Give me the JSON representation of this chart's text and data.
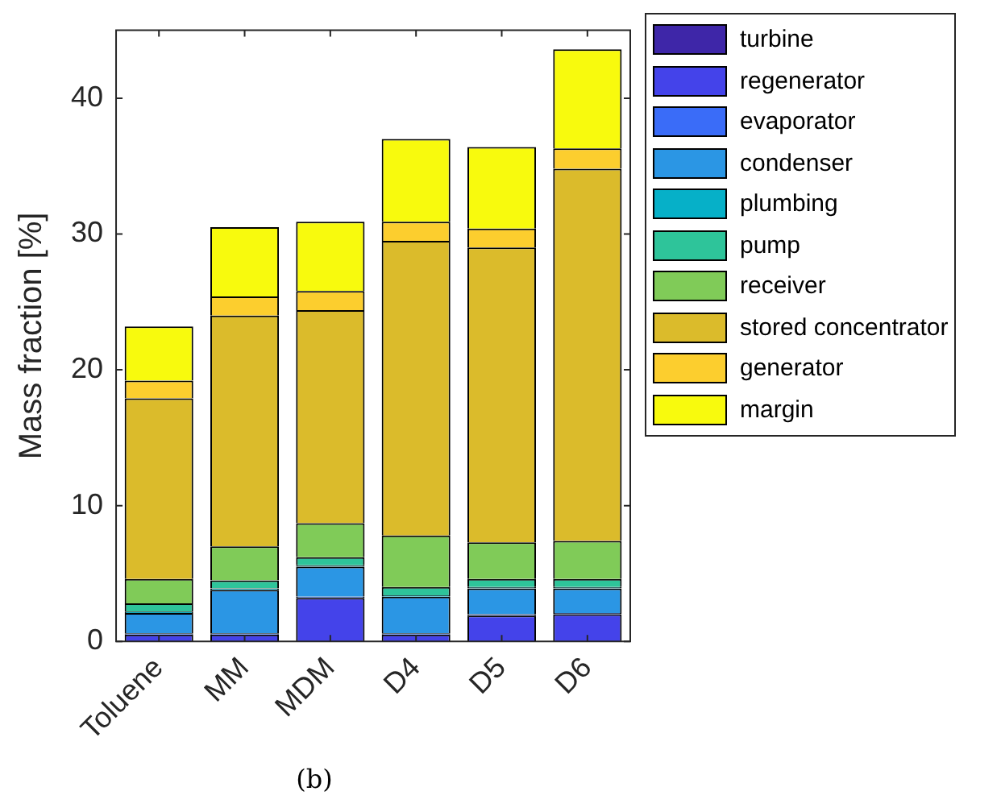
{
  "chart_data": {
    "type": "bar",
    "stacked": true,
    "ylabel": "Mass fraction [%]",
    "categories": [
      "Toluene",
      "MM",
      "MDM",
      "D4",
      "D5",
      "D6"
    ],
    "series": [
      {
        "name": "turbine",
        "color": "#3e26a8",
        "values": [
          null,
          null,
          null,
          null,
          null,
          null
        ]
      },
      {
        "name": "regenerator",
        "color": "#4443ea",
        "values": [
          0.5,
          0.5,
          3.2,
          0.5,
          1.9,
          2.0
        ]
      },
      {
        "name": "evaporator",
        "color": "#3a6cf8",
        "values": [
          0.1,
          0.1,
          0.1,
          0.1,
          0.1,
          0.1
        ]
      },
      {
        "name": "condenser",
        "color": "#2b96e4",
        "values": [
          1.5,
          3.2,
          2.2,
          2.7,
          1.9,
          1.8
        ]
      },
      {
        "name": "plumbing",
        "color": "#06b0c8",
        "values": [
          0.1,
          0.1,
          0.1,
          0.1,
          0.1,
          0.1
        ]
      },
      {
        "name": "pump",
        "color": "#2ec49a",
        "values": [
          0.6,
          0.6,
          0.6,
          0.6,
          0.6,
          0.6
        ]
      },
      {
        "name": "receiver",
        "color": "#80cb58",
        "values": [
          1.8,
          2.5,
          2.5,
          3.8,
          2.7,
          2.8
        ]
      },
      {
        "name": "stored concentrator",
        "color": "#dbbb2b",
        "values": [
          13.3,
          17.0,
          15.7,
          21.7,
          21.7,
          27.4
        ]
      },
      {
        "name": "generator",
        "color": "#fcce2e",
        "values": [
          1.3,
          1.4,
          1.4,
          1.4,
          1.4,
          1.5
        ]
      },
      {
        "name": "margin",
        "color": "#f8fa0d",
        "values": [
          4.0,
          5.1,
          5.1,
          6.1,
          6.0,
          7.3
        ]
      }
    ],
    "ylim": [
      0,
      45
    ],
    "yticks": [
      0,
      10,
      20,
      30,
      40
    ],
    "grid": false,
    "legend": "top right",
    "annotations": [
      "(b)"
    ]
  }
}
